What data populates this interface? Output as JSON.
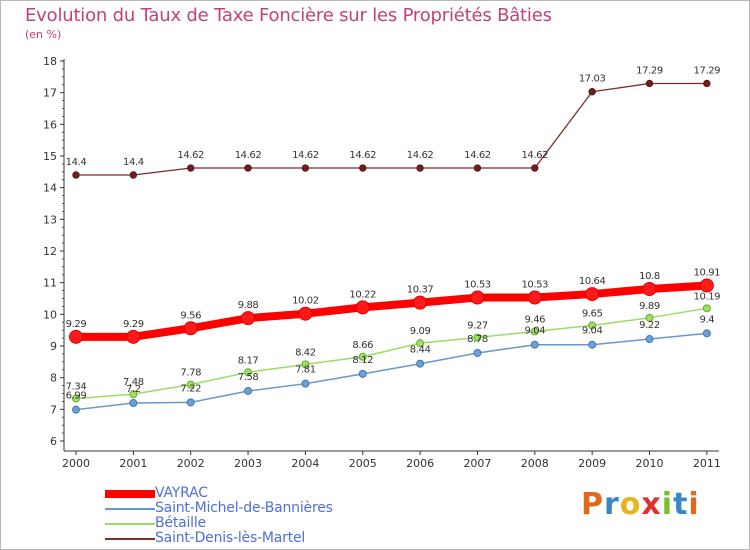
{
  "chart_data": {
    "type": "line",
    "title": "Evolution du Taux de Taxe Foncière sur les Propriétés Bâties",
    "unit": "(en %)",
    "xlabel": "",
    "ylabel": "",
    "categories": [
      "2000",
      "2001",
      "2002",
      "2003",
      "2004",
      "2005",
      "2006",
      "2007",
      "2008",
      "2009",
      "2010",
      "2011"
    ],
    "yticks": [
      "6",
      "7",
      "8",
      "9",
      "10",
      "11",
      "12",
      "13",
      "14",
      "15",
      "16",
      "17",
      "18"
    ],
    "ylim": [
      6,
      18
    ],
    "grid": false,
    "legend_position": "bottom-left",
    "series": [
      {
        "name": "VAYRAC",
        "color": "#ff0000",
        "values": [
          9.29,
          9.29,
          9.56,
          9.88,
          10.02,
          10.22,
          10.37,
          10.53,
          10.53,
          10.64,
          10.8,
          10.91
        ],
        "labels": [
          "9.29",
          "9.29",
          "9.56",
          "9.88",
          "10.02",
          "10.22",
          "10.37",
          "10.53",
          "10.53",
          "10.64",
          "10.8",
          "10.91"
        ]
      },
      {
        "name": "Saint-Michel-de-Bannières",
        "color": "#6699cc",
        "values": [
          6.99,
          7.2,
          7.22,
          7.58,
          7.81,
          8.12,
          8.44,
          8.78,
          9.04,
          9.04,
          9.22,
          9.4
        ],
        "labels": [
          "6.99",
          "7.2",
          "7.22",
          "7.58",
          "7.81",
          "8.12",
          "8.44",
          "8.78",
          "9.04",
          "9.04",
          "9.22",
          "9.4"
        ]
      },
      {
        "name": "Bétaille",
        "color": "#99dd66",
        "values": [
          7.34,
          7.48,
          7.78,
          8.17,
          8.42,
          8.66,
          9.09,
          9.27,
          9.46,
          9.65,
          9.89,
          10.19
        ],
        "labels": [
          "7.34",
          "7.48",
          "7.78",
          "8.17",
          "8.42",
          "8.66",
          "9.09",
          "9.27",
          "9.46",
          "9.65",
          "9.89",
          "10.19"
        ]
      },
      {
        "name": "Saint-Denis-lès-Martel",
        "color": "#7a2e2e",
        "values": [
          14.4,
          14.4,
          14.62,
          14.62,
          14.62,
          14.62,
          14.62,
          14.62,
          14.62,
          17.03,
          17.29,
          17.29
        ],
        "labels": [
          "14.4",
          "14.4",
          "14.62",
          "14.62",
          "14.62",
          "14.62",
          "14.62",
          "14.62",
          "14.62",
          "17.03",
          "17.29",
          "17.29"
        ]
      }
    ]
  },
  "logo": {
    "text": "Proxiti",
    "letters": [
      "P",
      "r",
      "o",
      "x",
      "i",
      "t",
      "i"
    ]
  }
}
